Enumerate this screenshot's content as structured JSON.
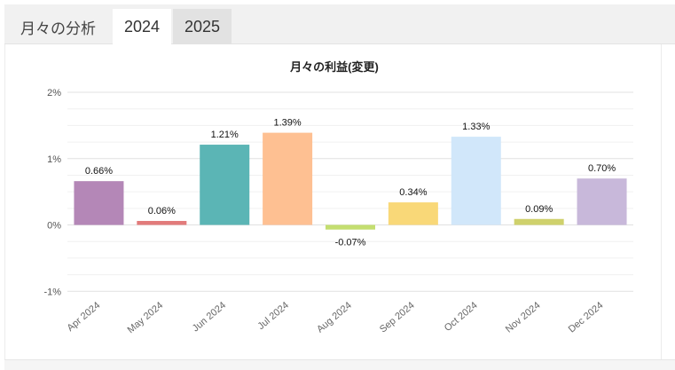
{
  "tabs": {
    "section_label": "月々の分析",
    "items": [
      {
        "label": "2024",
        "selected": true
      },
      {
        "label": "2025",
        "selected": false
      }
    ]
  },
  "chart_data": {
    "type": "bar",
    "title": "月々の利益(変更)",
    "xlabel": "",
    "ylabel": "",
    "categories": [
      "Apr 2024",
      "May 2024",
      "Jun 2024",
      "Jul 2024",
      "Aug 2024",
      "Sep 2024",
      "Oct 2024",
      "Nov 2024",
      "Dec 2024"
    ],
    "values": [
      0.66,
      0.06,
      1.21,
      1.39,
      -0.07,
      0.34,
      1.33,
      0.09,
      0.7
    ],
    "data_labels": [
      "0.66%",
      "0.06%",
      "1.21%",
      "1.39%",
      "-0.07%",
      "0.34%",
      "1.33%",
      "0.09%",
      "0.70%"
    ],
    "colors": [
      "#b487b7",
      "#e27b7b",
      "#5bb5b5",
      "#fec092",
      "#c4de70",
      "#f9d878",
      "#d1e7fa",
      "#cfd16c",
      "#c8b8da"
    ],
    "yticks": [
      2,
      1,
      0,
      -1
    ],
    "ytick_labels": [
      "2%",
      "1%",
      "0%",
      "-1%"
    ],
    "ylim": [
      -1,
      2
    ],
    "grid": true,
    "legend": "none"
  }
}
